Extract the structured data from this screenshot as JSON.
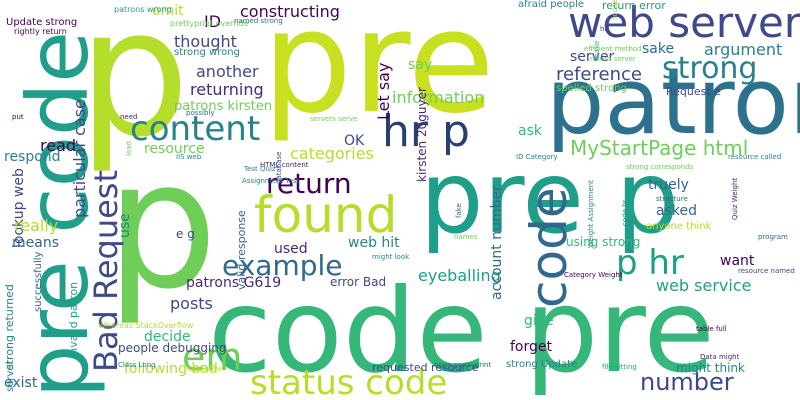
{
  "cloud": {
    "palette": [
      "#440154",
      "#482878",
      "#3e4989",
      "#31688e",
      "#26828e",
      "#1f9e89",
      "#35b779",
      "#6ece58",
      "#b5de2b",
      "#fde725"
    ],
    "words": [
      {
        "text": "p",
        "color": "#b5de2b"
      },
      {
        "text": "pre",
        "color": "#c8e020"
      },
      {
        "text": "p",
        "color": "#6ece58"
      },
      {
        "text": "code pre",
        "color": "#35b779"
      },
      {
        "text": "pre p",
        "color": "#1f9e89"
      },
      {
        "text": "patron",
        "color": "#2c728e"
      },
      {
        "text": "pre code",
        "color": "#1f9e89"
      },
      {
        "text": "web server",
        "color": "#3e4989"
      },
      {
        "text": "found",
        "color": "#b5de2b"
      },
      {
        "text": "status code",
        "color": "#b5de2b"
      },
      {
        "text": "code",
        "color": "#31688e"
      },
      {
        "text": "content",
        "color": "#26828e"
      },
      {
        "text": "strong",
        "color": "#26828e"
      },
      {
        "text": "hr p",
        "color": "#2a3f6f"
      },
      {
        "text": "Bad Request",
        "color": "#3e4989"
      },
      {
        "text": "return",
        "color": "#440154"
      },
      {
        "text": "example",
        "color": "#31688e"
      },
      {
        "text": "p hr",
        "color": "#1f9e89"
      },
      {
        "text": "em",
        "color": "#6ece58"
      },
      {
        "text": "number",
        "color": "#3e4989"
      },
      {
        "text": "MyStartPage html",
        "color": "#6ece58"
      },
      {
        "text": "reference",
        "color": "#3e4989"
      },
      {
        "text": "argument",
        "color": "#26828e"
      },
      {
        "text": "information",
        "color": "#6ece58"
      },
      {
        "text": "constructing",
        "color": "#440154"
      },
      {
        "text": "categories",
        "color": "#b5de2b"
      },
      {
        "text": "web service",
        "color": "#1f9e89"
      },
      {
        "text": "eyeballing",
        "color": "#1f9e89"
      },
      {
        "text": "account number",
        "color": "#31688e"
      },
      {
        "text": "web hit",
        "color": "#26828e"
      },
      {
        "text": "returning",
        "color": "#482878"
      },
      {
        "text": "resource",
        "color": "#6ece58"
      },
      {
        "text": "thought",
        "color": "#3e4989"
      },
      {
        "text": "another",
        "color": "#3e4989"
      },
      {
        "text": "patrons kirsten",
        "color": "#6ece58"
      },
      {
        "text": "lookup web",
        "color": "#3e4989"
      },
      {
        "text": "particular case",
        "color": "#3e4989"
      },
      {
        "text": "read",
        "color": "#440154"
      },
      {
        "text": "respond",
        "color": "#26828e"
      },
      {
        "text": "really",
        "color": "#b5de2b"
      },
      {
        "text": "means",
        "color": "#31688e"
      },
      {
        "text": "exist",
        "color": "#31688e"
      },
      {
        "text": "posts",
        "color": "#3e4989"
      },
      {
        "text": "patrons G619",
        "color": "#482878"
      },
      {
        "text": "decide",
        "color": "#35b779"
      },
      {
        "text": "following bad",
        "color": "#b5de2b"
      },
      {
        "text": "people debugging",
        "color": "#3e4989"
      },
      {
        "text": "used",
        "color": "#482878"
      },
      {
        "text": "error Bad",
        "color": "#3e4989"
      },
      {
        "text": "give",
        "color": "#35b779"
      },
      {
        "text": "forget",
        "color": "#440154"
      },
      {
        "text": "requested resource",
        "color": "#3e4989"
      },
      {
        "text": "asked",
        "color": "#31688e"
      },
      {
        "text": "truely",
        "color": "#31688e"
      },
      {
        "text": "want",
        "color": "#440154"
      },
      {
        "text": "might think",
        "color": "#26828e"
      },
      {
        "text": "using strong",
        "color": "#35b779"
      },
      {
        "text": "ask",
        "color": "#35b779"
      },
      {
        "text": "say",
        "color": "#6ece58"
      },
      {
        "text": "server",
        "color": "#3e4989"
      },
      {
        "text": "sake",
        "color": "#31688e"
      },
      {
        "text": "Let say",
        "color": "#440154"
      },
      {
        "text": "OK",
        "color": "#3e4989"
      },
      {
        "text": "ID",
        "color": "#440154"
      },
      {
        "text": "omit",
        "color": "#b5de2b"
      },
      {
        "text": "e g",
        "color": "#3e4989"
      },
      {
        "text": "use",
        "color": "#26828e"
      },
      {
        "text": "valid response",
        "color": "#31688e"
      },
      {
        "text": "kirsten 20guyer",
        "color": "#482878"
      },
      {
        "text": "Invalid patron",
        "color": "#1f9e89"
      },
      {
        "text": "successfully",
        "color": "#31688e"
      },
      {
        "text": "strong returned",
        "color": "#26828e"
      },
      {
        "text": "server",
        "color": "#26828e"
      },
      {
        "text": "return error",
        "color": "#1f9e89"
      },
      {
        "text": "afraid people",
        "color": "#26828e"
      },
      {
        "text": "Request e",
        "color": "#3e4989"
      },
      {
        "text": "spelled strong",
        "color": "#6ece58"
      },
      {
        "text": "strong Update",
        "color": "#26828e"
      },
      {
        "text": "anyone think",
        "color": "#b5de2b"
      },
      {
        "text": "Update strong",
        "color": "#440154"
      },
      {
        "text": "rightly return",
        "color": "#440154"
      },
      {
        "text": "prettyprint override",
        "color": "#6ece58"
      },
      {
        "text": "patrons wrong",
        "color": "#1f9e89"
      },
      {
        "text": "strong wrong",
        "color": "#26828e"
      },
      {
        "text": "named strong",
        "color": "#31688e"
      },
      {
        "text": "return server",
        "color": "#6ece58"
      },
      {
        "text": "efficient method",
        "color": "#6ece58"
      },
      {
        "text": "hit",
        "color": "#3e4989"
      },
      {
        "text": "Whereas StackOverflow",
        "color": "#b5de2b"
      },
      {
        "text": "Class Long",
        "color": "#26828e"
      },
      {
        "text": "hard drive",
        "color": "#b5de2b"
      },
      {
        "text": "none prettyprint",
        "color": "#31688e"
      },
      {
        "text": "HTML content",
        "color": "#482878"
      },
      {
        "text": "IIS web",
        "color": "#26828e"
      },
      {
        "text": "Test Quiz",
        "color": "#26828e"
      },
      {
        "text": "Assignment Test",
        "color": "#26828e"
      },
      {
        "text": "might look",
        "color": "#26828e"
      },
      {
        "text": "names",
        "color": "#6ece58"
      },
      {
        "text": "records",
        "color": "#26828e"
      },
      {
        "text": "file sitting",
        "color": "#1f9e89"
      },
      {
        "text": "Data might",
        "color": "#482878"
      },
      {
        "text": "table full",
        "color": "#440154"
      },
      {
        "text": "resource named",
        "color": "#3e4989"
      },
      {
        "text": "resource called",
        "color": "#26828e"
      },
      {
        "text": "program",
        "color": "#31688e"
      },
      {
        "text": "Category Weight",
        "color": "#440154"
      },
      {
        "text": "ID Category",
        "color": "#26828e"
      },
      {
        "text": "structure",
        "color": "#31688e"
      },
      {
        "text": "strong corresponds",
        "color": "#6ece58"
      },
      {
        "text": "servers serve",
        "color": "#6ece58"
      },
      {
        "text": "possibly",
        "color": "#31688e"
      },
      {
        "text": "need",
        "color": "#482878"
      },
      {
        "text": "put",
        "color": "#440154"
      },
      {
        "text": "Quiz Weight",
        "color": "#482878"
      },
      {
        "text": "Weight Assignment",
        "color": "#26828e"
      },
      {
        "text": "database",
        "color": "#3e4989"
      },
      {
        "text": "lead",
        "color": "#6ece58"
      },
      {
        "text": "scope",
        "color": "#b5de2b"
      },
      {
        "text": "fake",
        "color": "#31688e"
      },
      {
        "text": "code hr",
        "color": "#1f9e89"
      },
      {
        "text": "make",
        "color": "#35b779"
      },
      {
        "text": "programmatically",
        "color": "#6ece58"
      }
    ]
  }
}
